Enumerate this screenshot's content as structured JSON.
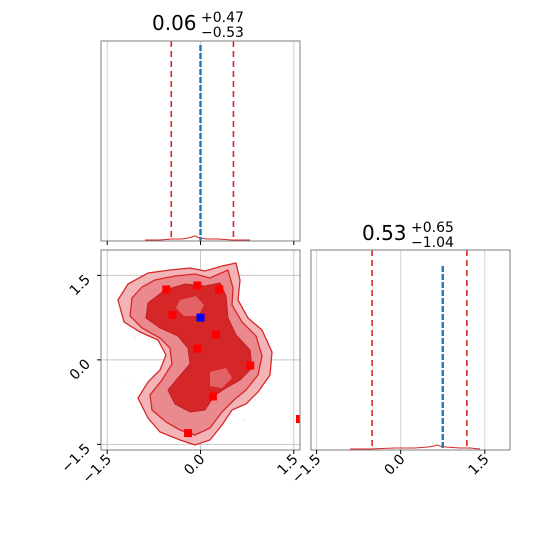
{
  "chart_data": [
    {
      "panel": "top-left",
      "type": "histogram",
      "title": {
        "value": "0.06",
        "plus": "+0.47",
        "minus": "−0.53"
      },
      "x_range": [
        -1.6,
        1.6
      ],
      "quantile_lines": [
        -0.47,
        0.06,
        0.53
      ],
      "truth_value": 0.0,
      "grid": true
    },
    {
      "panel": "bottom-left",
      "type": "contour",
      "x_range": [
        -1.6,
        1.6
      ],
      "y_range": [
        -1.6,
        1.95
      ],
      "x_ticks": [
        "−1.5",
        "0.0",
        "1.5"
      ],
      "y_ticks": [
        "−1.5",
        "0.0",
        "1.5"
      ],
      "truth_point": {
        "x": 0.0,
        "y": 0.75
      },
      "samples": [
        {
          "x": -0.55,
          "y": 1.25
        },
        {
          "x": -0.05,
          "y": 1.32
        },
        {
          "x": 0.3,
          "y": 1.25
        },
        {
          "x": -0.45,
          "y": 0.8
        },
        {
          "x": 0.25,
          "y": 0.45
        },
        {
          "x": -0.05,
          "y": 0.2
        },
        {
          "x": 0.8,
          "y": -0.1
        },
        {
          "x": 0.2,
          "y": -0.65
        },
        {
          "x": -0.2,
          "y": -1.3
        },
        {
          "x": 1.6,
          "y": -1.05
        }
      ],
      "grid": true
    },
    {
      "panel": "bottom-right",
      "type": "histogram",
      "title": {
        "value": "0.53",
        "plus": "+0.65",
        "minus": "−1.04"
      },
      "x_range": [
        -1.6,
        1.95
      ],
      "x_ticks": [
        "−1.5",
        "0.0",
        "1.5"
      ],
      "quantile_lines": [
        -0.51,
        0.53,
        1.18
      ],
      "truth_value": 0.75,
      "grid": true
    }
  ]
}
